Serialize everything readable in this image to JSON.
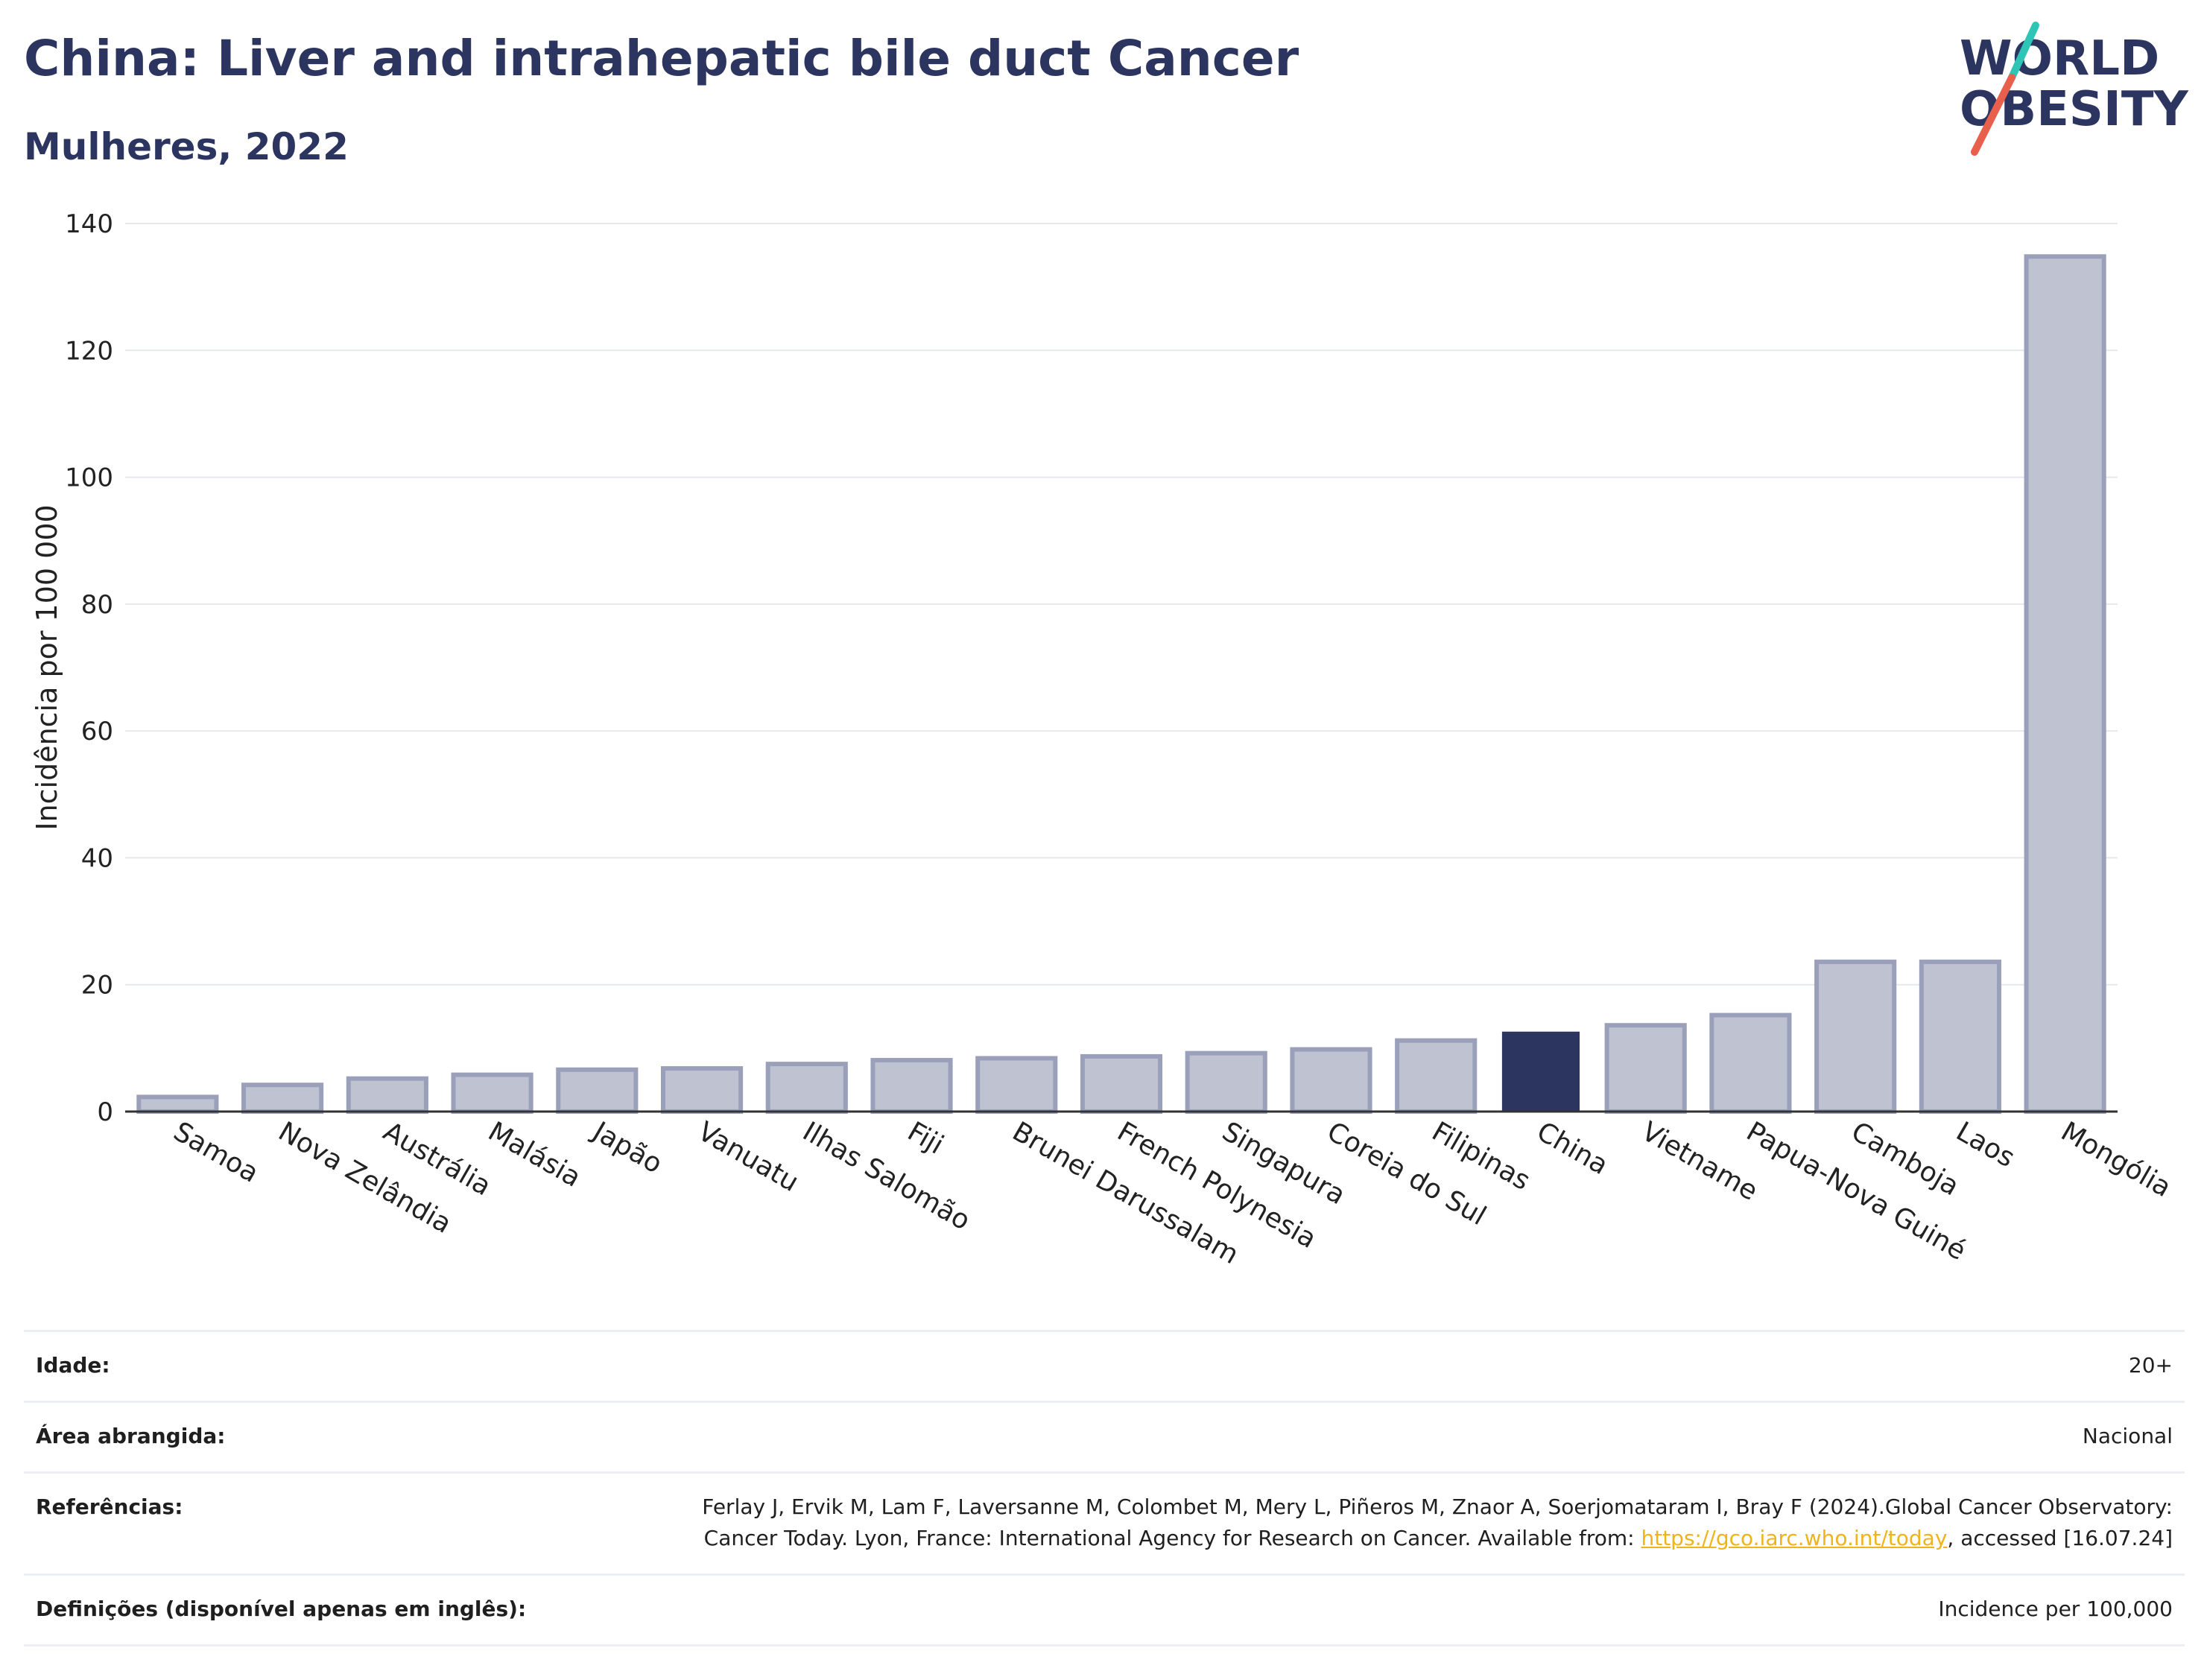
{
  "header": {
    "title": "China: Liver and intrahepatic bile duct Cancer",
    "subtitle": "Mulheres, 2022"
  },
  "logo": {
    "line1": "WORLD",
    "line2": "OBESITY",
    "accent_teal": "#2ec4b6",
    "accent_coral": "#e8604c"
  },
  "chart_data": {
    "type": "bar",
    "title": "China: Liver and intrahepatic bile duct Cancer",
    "subtitle": "Mulheres, 2022",
    "xlabel": "",
    "ylabel": "Incidência por 100 000",
    "ylim": [
      0,
      140
    ],
    "yticks": [
      0,
      20,
      40,
      60,
      80,
      100,
      120,
      140
    ],
    "grid": true,
    "highlight": "China",
    "colors": {
      "default_fill": "#bfc3d1",
      "default_stroke": "#9aa0ba",
      "highlight": "#2b3560"
    },
    "categories": [
      "Samoa",
      "Nova Zelândia",
      "Austrália",
      "Malásia",
      "Japão",
      "Vanuatu",
      "Ilhas Salomão",
      "Fiji",
      "Brunei Darussalam",
      "French Polynesia",
      "Singapura",
      "Coreia do Sul",
      "Filipinas",
      "China",
      "Vietname",
      "Papua-Nova Guiné",
      "Camboja",
      "Laos",
      "Mongólia"
    ],
    "values": [
      2.3,
      4.2,
      5.2,
      5.8,
      6.6,
      6.8,
      7.5,
      8.1,
      8.4,
      8.7,
      9.2,
      9.8,
      11.2,
      12.6,
      13.6,
      15.2,
      23.6,
      23.6,
      134.8
    ]
  },
  "info": {
    "age_label": "Idade:",
    "age_value": "20+",
    "area_label": "Área abrangida:",
    "area_value": "Nacional",
    "ref_label": "Referências:",
    "ref_text_1": "Ferlay J, Ervik M, Lam F, Laversanne M, Colombet M, Mery L, Piñeros M, Znaor A, Soerjomataram I, Bray F (2024).Global Cancer Observatory: Cancer Today. Lyon, France: International Agency for Research on Cancer. Available from: ",
    "ref_link": "https://gco.iarc.who.int/today",
    "ref_text_2": ", accessed [16.07.24]",
    "def_label": "Definições (disponível apenas em inglês):",
    "def_value": "Incidence per 100,000"
  }
}
